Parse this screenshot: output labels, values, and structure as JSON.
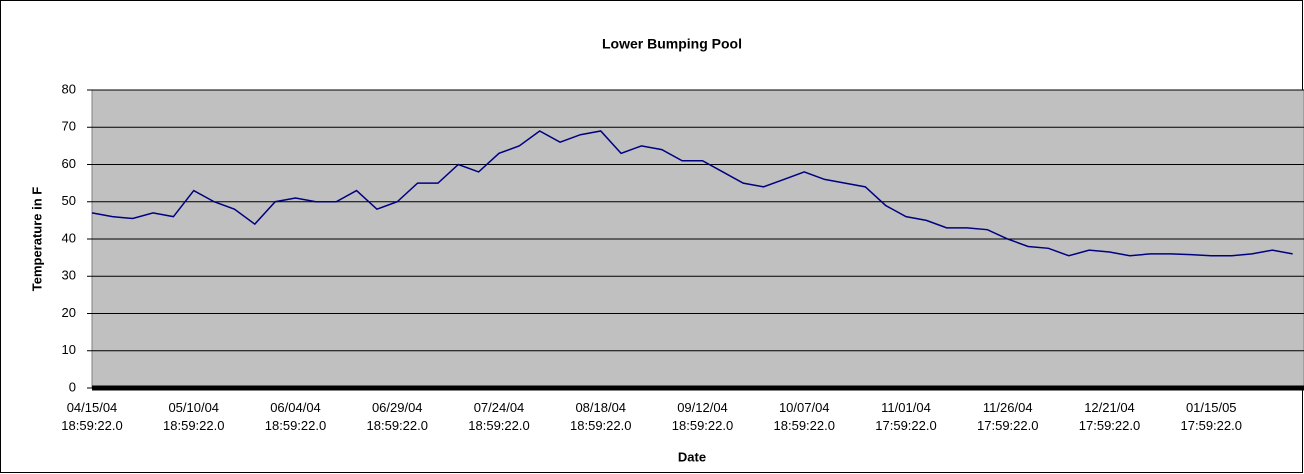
{
  "chart_data": {
    "type": "line",
    "title": "Lower Bumping Pool",
    "xlabel": "Date",
    "ylabel": "Temperature in F",
    "categories": [
      "04/15/04 18:59:22.0",
      null,
      null,
      null,
      null,
      "05/10/04 18:59:22.0",
      null,
      null,
      null,
      null,
      "06/04/04 18:59:22.0",
      null,
      null,
      null,
      null,
      "06/29/04 18:59:22.0",
      null,
      null,
      null,
      null,
      "07/24/04 18:59:22.0",
      null,
      null,
      null,
      null,
      "08/18/04 18:59:22.0",
      null,
      null,
      null,
      null,
      "09/12/04 18:59:22.0",
      null,
      null,
      null,
      null,
      "10/07/04 18:59:22.0",
      null,
      null,
      null,
      null,
      "11/01/04 17:59:22.0",
      null,
      null,
      null,
      null,
      "11/26/04 17:59:22.0",
      null,
      null,
      null,
      null,
      "12/21/04 17:59:22.0",
      null,
      null,
      null,
      null,
      "01/15/05 17:59:22.0",
      null,
      null,
      null,
      null
    ],
    "series": [
      {
        "name": "Temperature",
        "color": "#000080",
        "values": [
          47,
          46,
          45.5,
          47,
          46,
          53,
          50,
          48,
          44,
          50,
          51,
          50,
          50,
          53,
          48,
          50,
          55,
          55,
          60,
          58,
          63,
          65,
          69,
          66,
          68,
          69,
          63,
          65,
          64,
          61,
          61,
          58,
          55,
          54,
          56,
          58,
          56,
          55,
          54,
          49,
          46,
          45,
          43,
          43,
          42.5,
          40,
          38,
          37.5,
          35.5,
          37,
          36.5,
          35.5,
          36,
          36,
          35.8,
          35.5,
          35.5,
          36,
          37,
          36
        ]
      }
    ],
    "ylim": [
      0,
      80
    ],
    "yticks": [
      0,
      10,
      20,
      30,
      40,
      50,
      60,
      70,
      80
    ],
    "grid": true,
    "plot_background": "#c0c0c0"
  }
}
